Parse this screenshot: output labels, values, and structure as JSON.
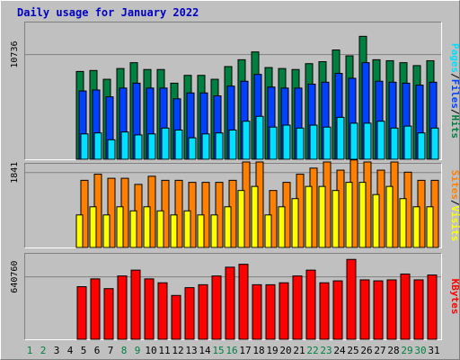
{
  "chart_data": {
    "type": "bar",
    "title": "Daily usage for January 2022",
    "categories": [
      "1",
      "2",
      "3",
      "4",
      "5",
      "6",
      "7",
      "8",
      "9",
      "10",
      "11",
      "12",
      "13",
      "14",
      "15",
      "16",
      "17",
      "18",
      "19",
      "20",
      "21",
      "22",
      "23",
      "24",
      "25",
      "26",
      "27",
      "28",
      "29",
      "30",
      "31"
    ],
    "weekend_days": [
      "1",
      "2",
      "8",
      "9",
      "15",
      "16",
      "22",
      "23",
      "29",
      "30"
    ],
    "colors": {
      "hits": "#008040",
      "files": "#0040ff",
      "pages": "#00e0ff",
      "visits": "#ffff00",
      "sites": "#ff8000",
      "kbytes": "#ff0000",
      "title": "#0000c0",
      "weekend_label": "#008040",
      "weekday_label": "#000000",
      "plot_bg": "#c0c0c0",
      "grid": "#808080"
    },
    "panels": [
      {
        "id": "top",
        "ytick_label": "10736",
        "ytick_value": 10736,
        "ylim": [
          0,
          14200
        ],
        "side_labels": [
          {
            "text": "Pages",
            "series": "pages"
          },
          {
            "text": "/",
            "series": null
          },
          {
            "text": "Files",
            "series": "files"
          },
          {
            "text": "/",
            "series": null
          },
          {
            "text": "Hits",
            "series": "hits"
          }
        ],
        "series": [
          {
            "key": "hits",
            "values": [
              0,
              0,
              0,
              0,
              9000,
              9100,
              8200,
              9300,
              9900,
              9200,
              9200,
              7800,
              8600,
              8600,
              8200,
              9500,
              10200,
              11000,
              9400,
              9300,
              9200,
              9800,
              10000,
              11200,
              10600,
              12600,
              10200,
              10100,
              9900,
              9600,
              10100
            ]
          },
          {
            "key": "files",
            "values": [
              0,
              0,
              0,
              0,
              7000,
              7100,
              6400,
              7300,
              7800,
              7300,
              7300,
              6200,
              6800,
              6800,
              6500,
              7500,
              8000,
              8700,
              7400,
              7300,
              7300,
              7700,
              7900,
              8800,
              8300,
              9900,
              8000,
              7900,
              7800,
              7600,
              7900
            ]
          },
          {
            "key": "pages",
            "values": [
              0,
              0,
              0,
              0,
              2600,
              2700,
              2000,
              2800,
              2500,
              2600,
              3200,
              3000,
              2200,
              2600,
              2700,
              3000,
              3900,
              4400,
              3300,
              3500,
              3200,
              3500,
              3300,
              4300,
              3700,
              3700,
              3900,
              3200,
              3400,
              2700,
              3200
            ]
          }
        ]
      },
      {
        "id": "mid",
        "ytick_label": "1841",
        "ytick_value": 1841,
        "ylim": [
          0,
          2100
        ],
        "side_labels": [
          {
            "text": "Sites",
            "series": "sites"
          },
          {
            "text": "/",
            "series": null
          },
          {
            "text": "Visits",
            "series": "visits"
          }
        ],
        "series": [
          {
            "key": "sites",
            "values": [
              0,
              0,
              0,
              0,
              1650,
              1800,
              1700,
              1700,
              1550,
              1750,
              1650,
              1650,
              1600,
              1600,
              1600,
              1650,
              2100,
              2100,
              1400,
              1600,
              1800,
              1950,
              2100,
              1900,
              2150,
              2100,
              1900,
              2100,
              1850,
              1650,
              1650
            ]
          },
          {
            "key": "visits",
            "values": [
              0,
              0,
              0,
              0,
              800,
              1000,
              800,
              1000,
              900,
              1000,
              900,
              800,
              900,
              800,
              800,
              1000,
              1400,
              1500,
              800,
              1000,
              1200,
              1500,
              1500,
              1400,
              1600,
              1600,
              1300,
              1500,
              1200,
              1000,
              1000
            ]
          }
        ]
      },
      {
        "id": "bot",
        "ytick_label": "640760",
        "ytick_value": 640760,
        "ylim": [
          0,
          896000
        ],
        "side_labels": [
          {
            "text": "KBytes",
            "series": "kbytes"
          }
        ],
        "series": [
          {
            "key": "kbytes",
            "values": [
              0,
              0,
              0,
              0,
              540000,
              620000,
              520000,
              650000,
              710000,
              620000,
              580000,
              450000,
              530000,
              560000,
              650000,
              740000,
              770000,
              560000,
              560000,
              580000,
              650000,
              710000,
              580000,
              600000,
              820000,
              610000,
              600000,
              610000,
              670000,
              610000,
              660000
            ]
          }
        ]
      }
    ]
  }
}
